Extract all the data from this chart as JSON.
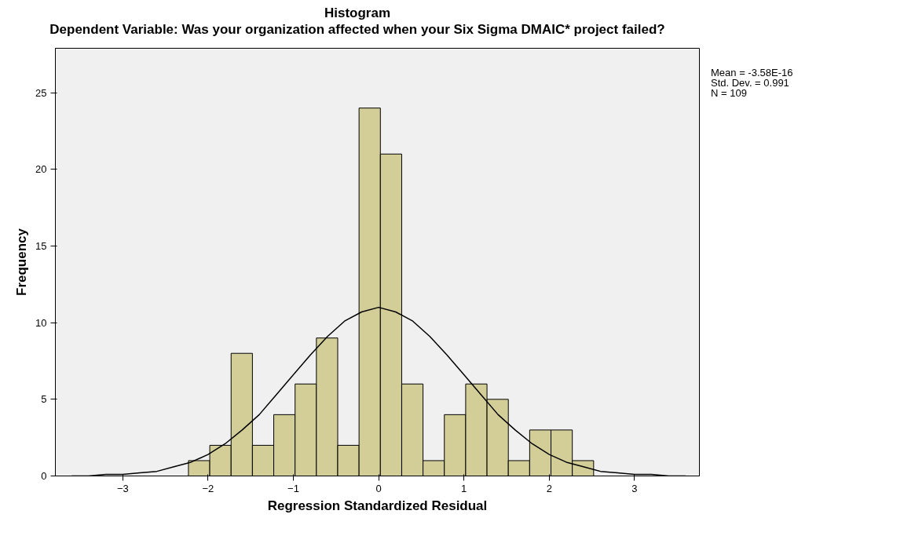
{
  "chart_data": {
    "type": "histogram",
    "title": "Histogram",
    "subtitle": "Dependent Variable: Was your organization affected when your Six Sigma DMAIC* project failed?",
    "xlabel": "Regression Standardized Residual",
    "ylabel": "Frequency",
    "bins": [
      -2.23,
      -1.98,
      -1.73,
      -1.48,
      -1.23,
      -0.98,
      -0.73,
      -0.48,
      -0.23,
      0.02,
      0.27,
      0.52,
      0.77,
      1.02,
      1.27,
      1.52,
      1.77,
      2.02,
      2.27,
      2.52
    ],
    "values": [
      1,
      2,
      8,
      2,
      4,
      6,
      9,
      2,
      24,
      21,
      6,
      1,
      4,
      6,
      5,
      1,
      3,
      3,
      1
    ],
    "color": "#d3ce97",
    "series": [
      {
        "type": "line",
        "color": "#000000",
        "x": [
          -3.6,
          -3.4,
          -3.2,
          -3.0,
          -2.8,
          -2.6,
          -2.4,
          -2.2,
          -2.0,
          -1.8,
          -1.6,
          -1.4,
          -1.2,
          -1.0,
          -0.8,
          -0.6,
          -0.4,
          -0.2,
          0.0,
          0.2,
          0.4,
          0.6,
          0.8,
          1.0,
          1.2,
          1.4,
          1.6,
          1.8,
          2.0,
          2.2,
          2.4,
          2.6,
          2.8,
          3.0,
          3.2,
          3.4,
          3.6
        ],
        "values": [
          0.0,
          0.0,
          0.1,
          0.1,
          0.2,
          0.3,
          0.6,
          0.9,
          1.4,
          2.1,
          3.0,
          4.0,
          5.3,
          6.6,
          7.9,
          9.1,
          10.1,
          10.7,
          11.0,
          10.7,
          10.1,
          9.1,
          7.9,
          6.6,
          5.3,
          4.0,
          3.0,
          2.1,
          1.4,
          0.9,
          0.6,
          0.3,
          0.2,
          0.1,
          0.1,
          0.0,
          0.0
        ]
      }
    ],
    "xlim": [
      -3.79,
      3.76
    ],
    "ylim": [
      0,
      27.9
    ],
    "xticks": [
      -3,
      -2,
      -1,
      0,
      1,
      2,
      3
    ],
    "yticks": [
      0,
      5,
      10,
      15,
      20,
      25
    ],
    "grid": false,
    "annotations": [
      "Mean = -3.58E-16",
      "Std. Dev. = 0.991",
      "N = 109"
    ]
  }
}
